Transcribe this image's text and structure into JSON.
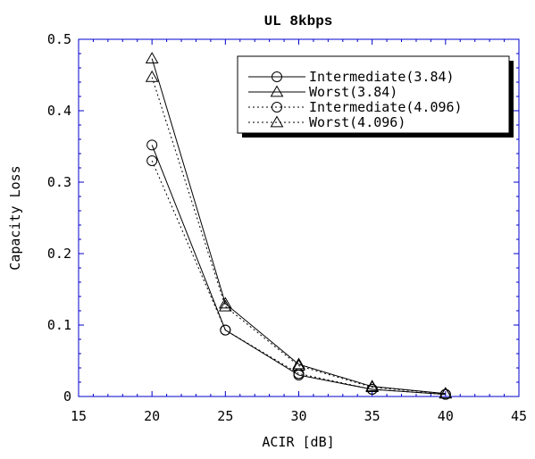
{
  "chart_data": {
    "type": "line",
    "title": "UL 8kbps",
    "xlabel": "ACIR [dB]",
    "ylabel": "Capacity Loss",
    "xlim": [
      15,
      45
    ],
    "ylim": [
      0,
      0.5
    ],
    "x_ticks": [
      "15",
      "20",
      "25",
      "30",
      "35",
      "40",
      "45"
    ],
    "y_ticks": [
      "0",
      "0.1",
      "0.2",
      "0.3",
      "0.4",
      "0.5"
    ],
    "grid": false,
    "legend_position": "top-right",
    "x": [
      20,
      25,
      30,
      35,
      40
    ],
    "series": [
      {
        "name": "Intermediate(3.84)",
        "values": [
          0.352,
          0.093,
          0.03,
          0.01,
          0.003
        ],
        "marker": "circle",
        "line_style": "solid"
      },
      {
        "name": "Worst(3.84)",
        "values": [
          0.473,
          0.13,
          0.045,
          0.014,
          0.004
        ],
        "marker": "triangle",
        "line_style": "solid"
      },
      {
        "name": "Intermediate(4.096)",
        "values": [
          0.33,
          0.093,
          0.032,
          0.01,
          0.003
        ],
        "marker": "circle",
        "line_style": "dotted"
      },
      {
        "name": "Worst(4.096)",
        "values": [
          0.447,
          0.126,
          0.043,
          0.013,
          0.004
        ],
        "marker": "triangle",
        "line_style": "dotted"
      }
    ],
    "colors": {
      "axes": "#0000cc",
      "lines": "#000000"
    }
  }
}
